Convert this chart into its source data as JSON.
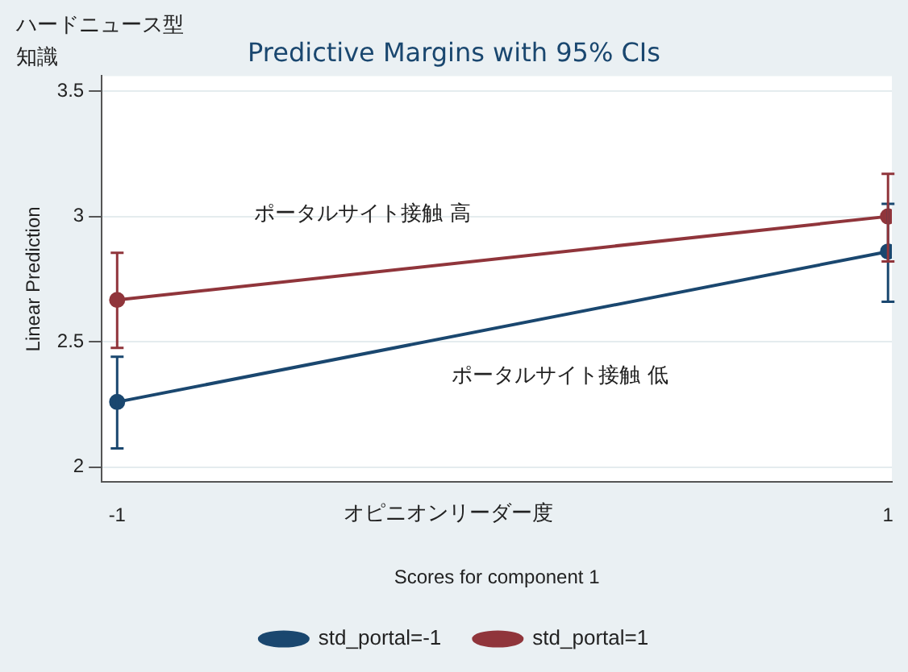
{
  "chart_data": {
    "type": "line",
    "title": "Predictive Margins with 95% CIs",
    "xlabel": "Scores for component 1",
    "ylabel": "Linear Prediction",
    "annotations": [
      "ハードニュース型知識",
      "オピニオンリーダー度",
      "ポータルサイト接触 高",
      "ポータルサイト接触 低"
    ],
    "x": [
      -1,
      1
    ],
    "series": [
      {
        "name": "std_portal=-1",
        "color": "#1a476f",
        "values": [
          2.26,
          2.86
        ],
        "errors": [
          [
            2.075,
            2.44
          ],
          [
            2.66,
            3.05
          ]
        ]
      },
      {
        "name": "std_portal=1",
        "color": "#90353b",
        "values": [
          2.667,
          3.0
        ],
        "errors": [
          [
            2.476,
            2.855
          ],
          [
            2.82,
            3.17
          ]
        ]
      }
    ],
    "xlim": [
      -1.04,
      1.01
    ],
    "xticks": [
      -1,
      1
    ],
    "ylim": [
      1.94,
      3.56
    ],
    "yticks": [
      2,
      2.5,
      3,
      3.5
    ],
    "grid": "y",
    "legend": "bottom",
    "marker": "circle",
    "line_style": "solid"
  }
}
